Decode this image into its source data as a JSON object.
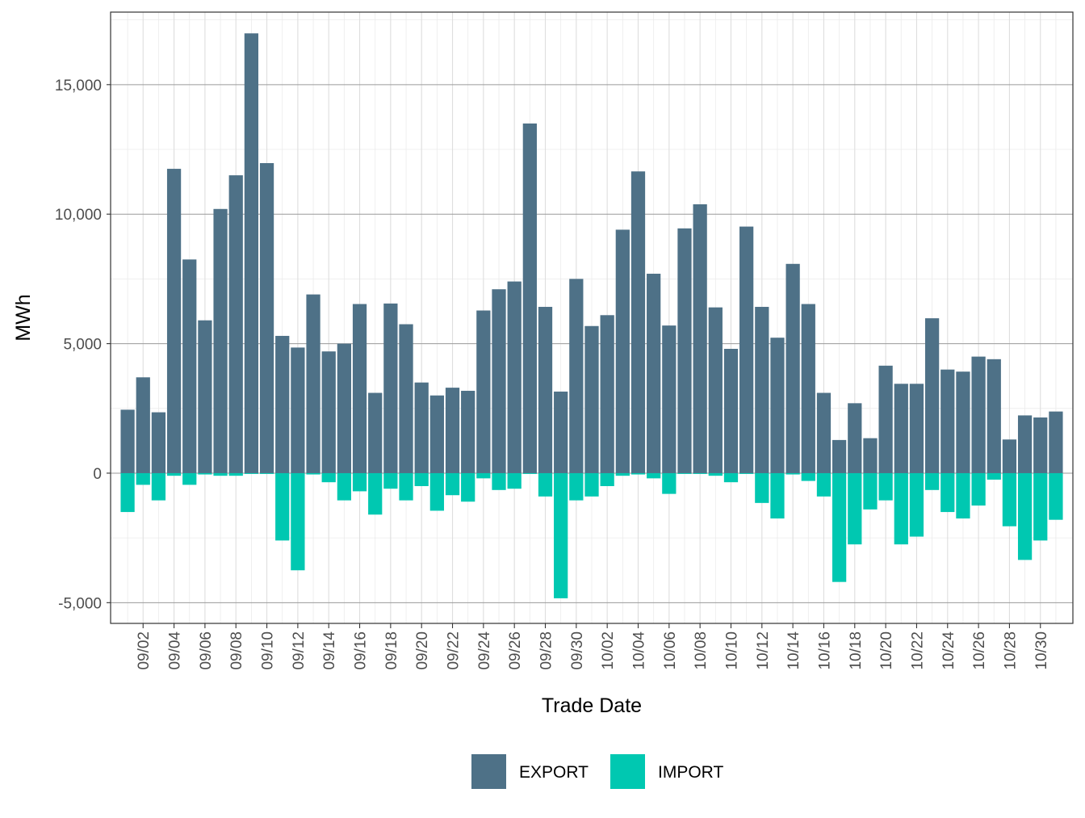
{
  "chart_data": {
    "type": "bar",
    "stacked": true,
    "title": "",
    "xlabel": "Trade Date",
    "ylabel": "MWh",
    "ylim": [
      -5800,
      17800
    ],
    "yticks": [
      -5000,
      0,
      5000,
      10000,
      15000
    ],
    "ytick_labels": [
      "-5,000",
      "0",
      "5,000",
      "10,000",
      "15,000"
    ],
    "grid": true,
    "legend_position": "bottom",
    "categories": [
      "09/01",
      "09/02",
      "09/03",
      "09/04",
      "09/05",
      "09/06",
      "09/07",
      "09/08",
      "09/09",
      "09/10",
      "09/11",
      "09/12",
      "09/13",
      "09/14",
      "09/15",
      "09/16",
      "09/17",
      "09/18",
      "09/19",
      "09/20",
      "09/21",
      "09/22",
      "09/23",
      "09/24",
      "09/25",
      "09/26",
      "09/27",
      "09/28",
      "09/29",
      "09/30",
      "10/01",
      "10/02",
      "10/03",
      "10/04",
      "10/05",
      "10/06",
      "10/07",
      "10/08",
      "10/09",
      "10/10",
      "10/11",
      "10/12",
      "10/13",
      "10/14",
      "10/15",
      "10/16",
      "10/17",
      "10/18",
      "10/19",
      "10/20",
      "10/21",
      "10/22",
      "10/23",
      "10/24",
      "10/25",
      "10/26",
      "10/27",
      "10/28",
      "10/29",
      "10/30",
      "10/31"
    ],
    "xtick_labels": [
      "09/02",
      "09/04",
      "09/06",
      "09/08",
      "09/10",
      "09/12",
      "09/14",
      "09/16",
      "09/18",
      "09/20",
      "09/22",
      "09/24",
      "09/26",
      "09/28",
      "09/30",
      "10/02",
      "10/04",
      "10/06",
      "10/08",
      "10/10",
      "10/12",
      "10/14",
      "10/16",
      "10/18",
      "10/20",
      "10/22",
      "10/24",
      "10/26",
      "10/28",
      "10/30"
    ],
    "series": [
      {
        "name": "EXPORT",
        "color": "#4e7187",
        "values": [
          2450,
          3700,
          2350,
          11750,
          8250,
          5900,
          10200,
          11500,
          16980,
          11970,
          5300,
          4850,
          6900,
          4700,
          5000,
          6530,
          3100,
          6550,
          5750,
          3500,
          3000,
          3300,
          3180,
          6280,
          7100,
          7400,
          13500,
          6420,
          3150,
          7500,
          5680,
          6100,
          9400,
          11650,
          7700,
          5700,
          9450,
          10380,
          6400,
          4800,
          9520,
          6420,
          5230,
          8080,
          6530,
          3100,
          1280,
          2700,
          1350,
          4150,
          3450,
          3450,
          5980,
          4000,
          3920,
          4500,
          4400,
          1300,
          2230,
          2150,
          2380
        ]
      },
      {
        "name": "IMPORT",
        "color": "#00c8b1",
        "values": [
          -1500,
          -450,
          -1050,
          -100,
          -450,
          -50,
          -100,
          -100,
          -30,
          -30,
          -2600,
          -3750,
          -50,
          -350,
          -1050,
          -700,
          -1600,
          -600,
          -1050,
          -500,
          -1450,
          -850,
          -1100,
          -200,
          -650,
          -600,
          -30,
          -900,
          -4830,
          -1050,
          -900,
          -500,
          -100,
          -50,
          -200,
          -800,
          -30,
          -30,
          -100,
          -350,
          -30,
          -1150,
          -1750,
          -50,
          -300,
          -900,
          -4200,
          -2750,
          -1400,
          -1050,
          -2750,
          -2450,
          -650,
          -1500,
          -1750,
          -1250,
          -250,
          -2050,
          -3350,
          -2600,
          -1800
        ]
      }
    ]
  }
}
